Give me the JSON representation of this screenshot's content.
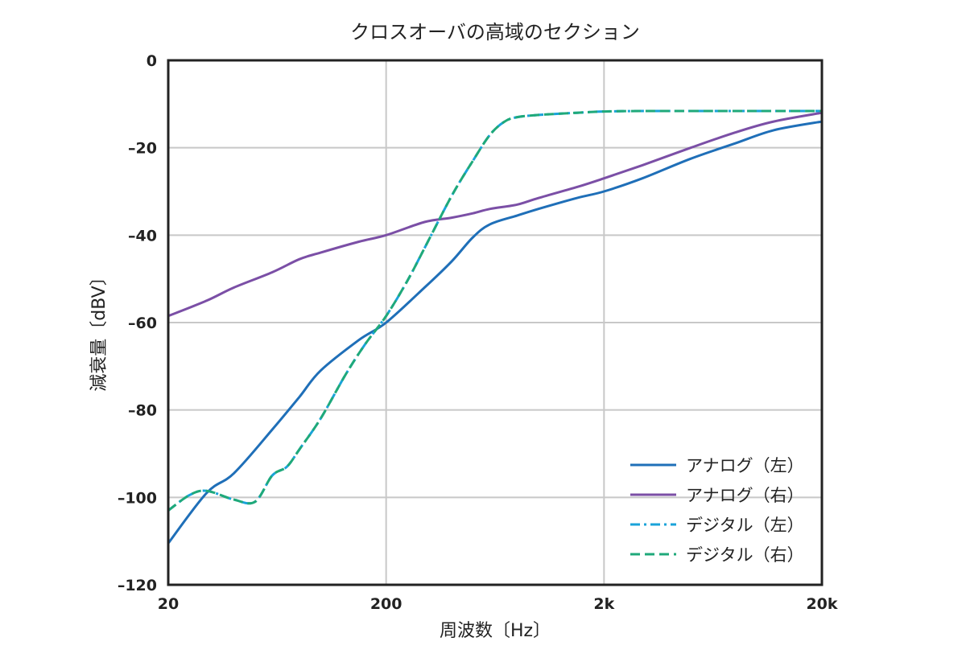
{
  "chart_data": {
    "type": "line",
    "title": "クロスオーバの高域のセクション",
    "xlabel": "周波数〔Hz〕",
    "ylabel": "減衰量〔dBV〕",
    "x_scale": "log",
    "xlim": [
      20,
      20000
    ],
    "ylim": [
      -120,
      0
    ],
    "x_ticks": [
      {
        "value": 20,
        "label": "20"
      },
      {
        "value": 200,
        "label": "200"
      },
      {
        "value": 2000,
        "label": "2k"
      },
      {
        "value": 20000,
        "label": "20k"
      }
    ],
    "y_ticks": [
      {
        "value": 0,
        "label": "0"
      },
      {
        "value": -20,
        "label": "–20"
      },
      {
        "value": -40,
        "label": "–40"
      },
      {
        "value": -60,
        "label": "–60"
      },
      {
        "value": -80,
        "label": "–80"
      },
      {
        "value": -100,
        "label": "–100"
      },
      {
        "value": -120,
        "label": "–120"
      }
    ],
    "grid": true,
    "legend_position": "bottom-right",
    "series": [
      {
        "name": "アナログ（左）",
        "color": "#1f6fb8",
        "dash": "solid",
        "x": [
          20,
          30,
          40,
          60,
          80,
          100,
          150,
          200,
          300,
          400,
          500,
          600,
          800,
          1000,
          1500,
          2000,
          3000,
          5000,
          8000,
          12000,
          20000
        ],
        "y": [
          -110.5,
          -99,
          -94.5,
          -84.5,
          -77,
          -71,
          -64,
          -60,
          -52,
          -46,
          -40.5,
          -37.5,
          -35.5,
          -34,
          -31.5,
          -30,
          -27,
          -22.5,
          -19,
          -16,
          -14
        ]
      },
      {
        "name": "アナログ（右）",
        "color": "#7b4fa6",
        "dash": "solid",
        "x": [
          20,
          30,
          40,
          60,
          80,
          100,
          150,
          200,
          300,
          400,
          500,
          600,
          800,
          1000,
          1500,
          2000,
          3000,
          5000,
          8000,
          12000,
          20000
        ],
        "y": [
          -58.5,
          -55,
          -52,
          -48.5,
          -45.5,
          -44,
          -41.5,
          -40,
          -37,
          -36,
          -35,
          -34,
          -33,
          -31.5,
          -29,
          -27,
          -24,
          -20,
          -16.5,
          -14,
          -12
        ]
      },
      {
        "name": "デジタル（左）",
        "color": "#1aa3d9",
        "dash": "dashdot",
        "x": [
          20,
          25,
          30,
          40,
          50,
          60,
          70,
          80,
          100,
          130,
          160,
          200,
          250,
          300,
          400,
          500,
          600,
          700,
          800,
          1000,
          1500,
          2000,
          3000,
          5000,
          10000,
          20000
        ],
        "y": [
          -103,
          -99.5,
          -98.5,
          -100.5,
          -101,
          -95,
          -93,
          -89,
          -82,
          -72,
          -65,
          -58.5,
          -50.5,
          -43,
          -31,
          -23,
          -17,
          -14,
          -13,
          -12.5,
          -12,
          -11.7,
          -11.6,
          -11.6,
          -11.6,
          -11.6
        ]
      },
      {
        "name": "デジタル（右）",
        "color": "#1fa97a",
        "dash": "dashed",
        "x": [
          20,
          25,
          30,
          40,
          50,
          60,
          70,
          80,
          100,
          130,
          160,
          200,
          250,
          300,
          400,
          500,
          600,
          700,
          800,
          1000,
          1500,
          2000,
          3000,
          5000,
          10000,
          20000
        ],
        "y": [
          -103,
          -99.5,
          -98.5,
          -100.5,
          -101,
          -95,
          -93,
          -89,
          -82,
          -72,
          -65,
          -58.5,
          -50.5,
          -43,
          -31,
          -23,
          -17,
          -14,
          -13,
          -12.5,
          -12,
          -11.7,
          -11.6,
          -11.6,
          -11.6,
          -11.6
        ]
      }
    ]
  }
}
